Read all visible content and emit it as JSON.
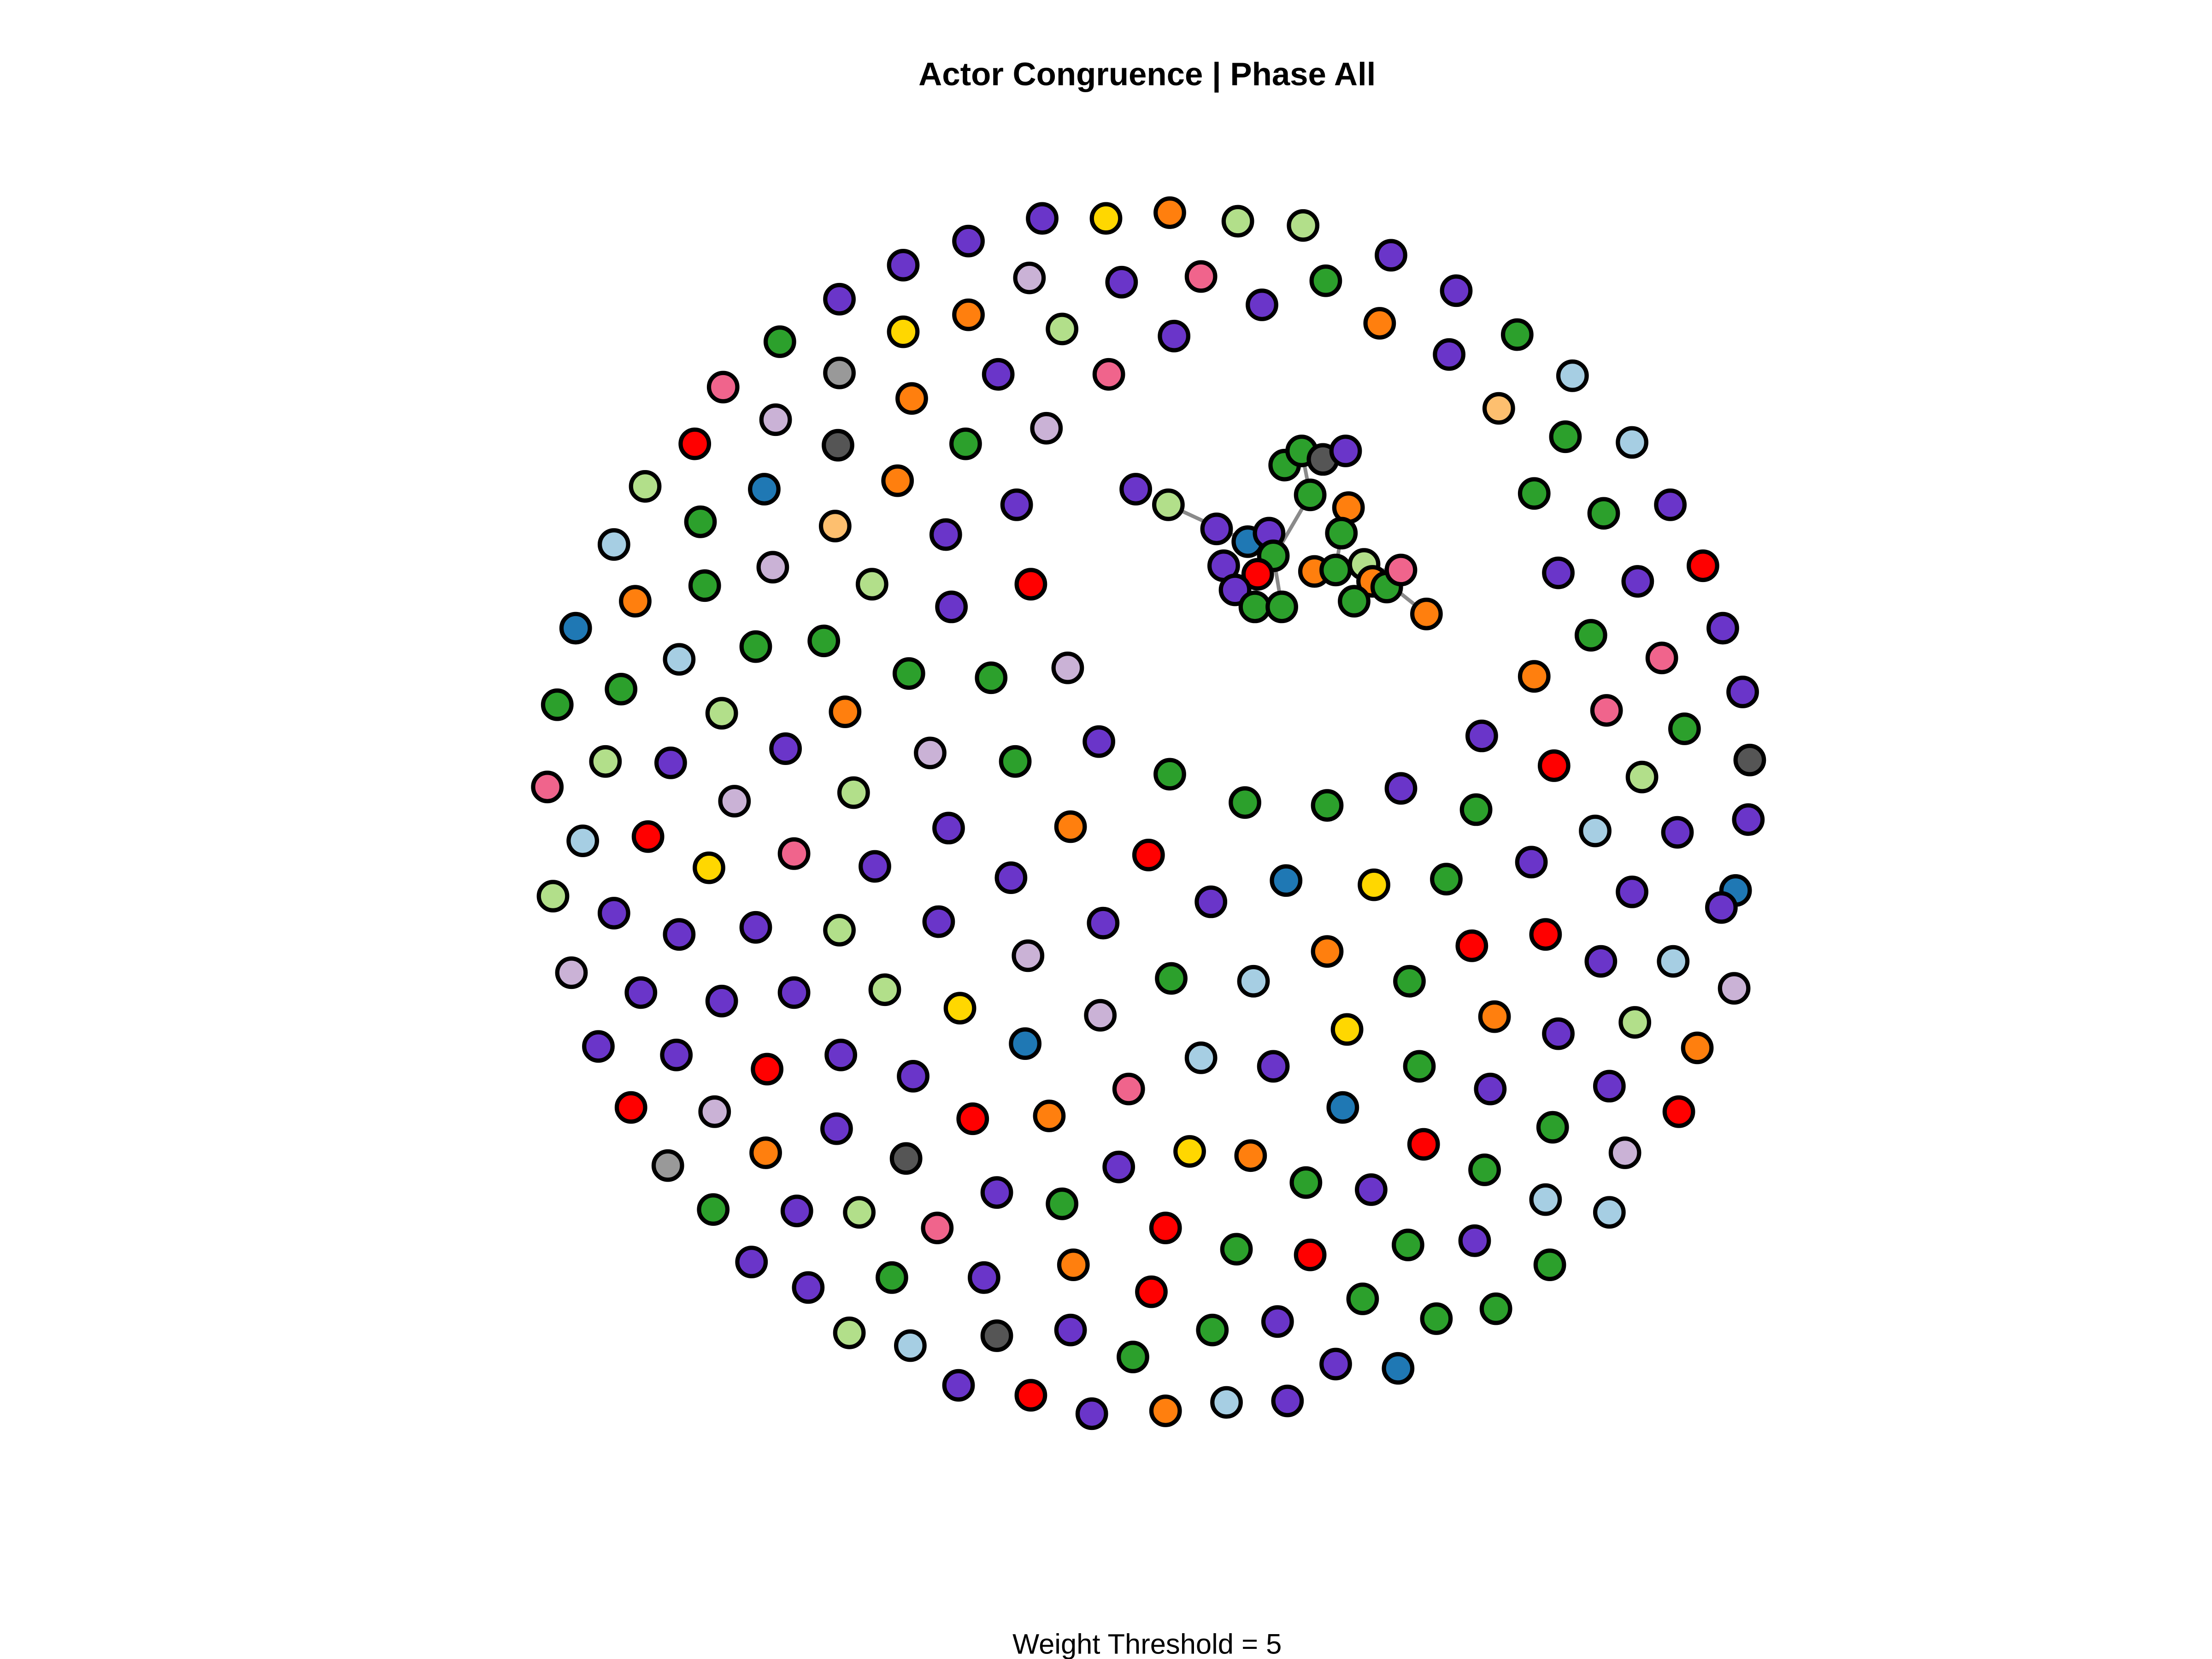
{
  "title": "Actor Congruence | Phase All",
  "footer": "Weight Threshold = 5"
}
